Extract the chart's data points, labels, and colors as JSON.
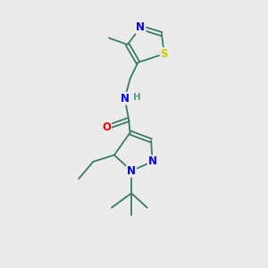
{
  "background_color": "#ebebeb",
  "bond_color": "#3a7a6a",
  "atom_colors": {
    "N": "#0000ee",
    "O": "#ee0000",
    "S": "#cccc00",
    "H": "#5a9a8a",
    "C": "#3a7a6a"
  },
  "font_size_atom": 8.5,
  "font_size_small": 7.5,
  "figsize": [
    3.0,
    3.0
  ],
  "dpi": 100
}
